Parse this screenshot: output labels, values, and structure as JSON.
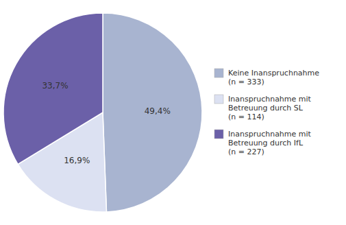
{
  "chart_data": {
    "type": "pie",
    "categories": [
      "Keine Inanspruchnahme\n(n = 333)",
      "Inanspruchnahme mit\nBetreuung durch SL\n(n = 114)",
      "Inanspruchnahme mit\nBetreuung durch IfL\n(n = 227)"
    ],
    "values": [
      49.4,
      16.9,
      33.7
    ],
    "value_labels": [
      "49,4%",
      "16,9%",
      "33,7%"
    ],
    "colors": [
      "#a8b4d0",
      "#dce1f2",
      "#6b60a8"
    ],
    "data_labels": true,
    "legend": "right"
  }
}
